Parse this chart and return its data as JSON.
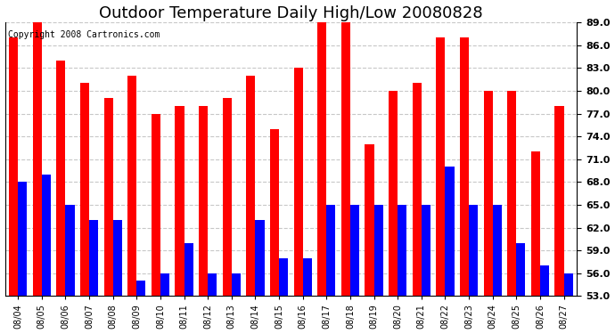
{
  "title": "Outdoor Temperature Daily High/Low 20080828",
  "copyright": "Copyright 2008 Cartronics.com",
  "dates": [
    "08/04",
    "08/05",
    "08/06",
    "08/07",
    "08/08",
    "08/09",
    "08/10",
    "08/11",
    "08/12",
    "08/13",
    "08/14",
    "08/15",
    "08/16",
    "08/17",
    "08/18",
    "08/19",
    "08/20",
    "08/21",
    "08/22",
    "08/23",
    "08/24",
    "08/25",
    "08/26",
    "08/27"
  ],
  "highs": [
    87,
    89,
    84,
    81,
    79,
    82,
    77,
    78,
    78,
    79,
    82,
    75,
    83,
    90,
    90,
    73,
    80,
    81,
    87,
    87,
    80,
    80,
    72,
    78
  ],
  "lows": [
    68,
    69,
    65,
    63,
    63,
    55,
    56,
    60,
    56,
    56,
    63,
    58,
    58,
    65,
    65,
    65,
    65,
    65,
    70,
    65,
    65,
    60,
    57,
    56
  ],
  "high_color": "#ff0000",
  "low_color": "#0000ff",
  "background_color": "#ffffff",
  "grid_color": "#c8c8c8",
  "ymin": 53.0,
  "ymax": 89.0,
  "yticks": [
    53.0,
    56.0,
    59.0,
    62.0,
    65.0,
    68.0,
    71.0,
    74.0,
    77.0,
    80.0,
    83.0,
    86.0,
    89.0
  ],
  "bar_width": 0.38,
  "title_fontsize": 13,
  "copyright_fontsize": 7,
  "tick_fontsize": 8,
  "xtick_fontsize": 7
}
